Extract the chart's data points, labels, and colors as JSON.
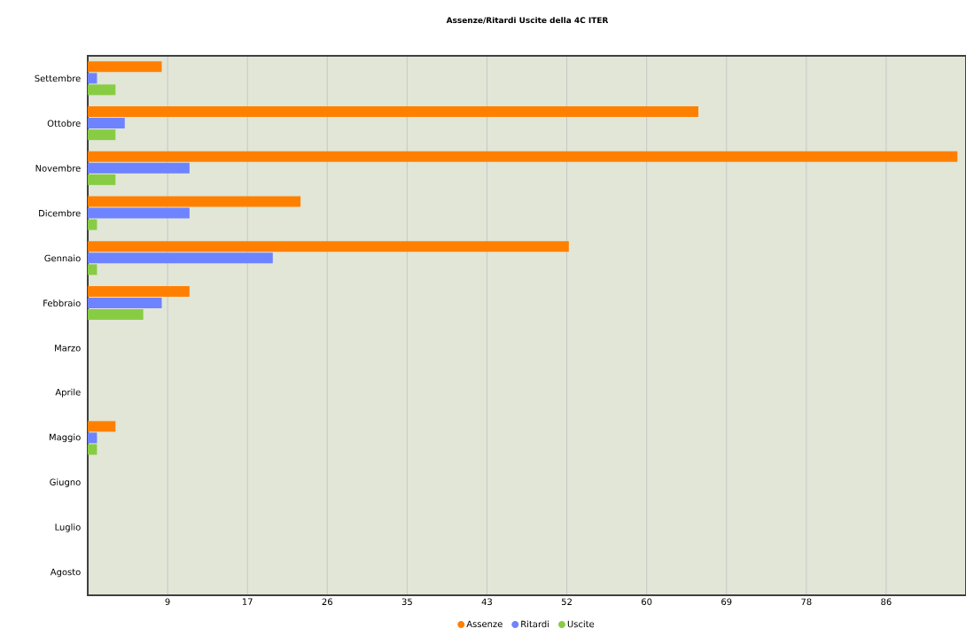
{
  "chart_data": {
    "type": "bar",
    "orientation": "horizontal",
    "title": "Assenze/Ritardi Uscite della 4C ITER",
    "categories": [
      "Settembre",
      "Ottobre",
      "Novembre",
      "Dicembre",
      "Gennaio",
      "Febbraio",
      "Marzo",
      "Aprile",
      "Maggio",
      "Giugno",
      "Luglio",
      "Agosto"
    ],
    "series": [
      {
        "name": "Assenze",
        "color": "#ff8000",
        "values": [
          8,
          66,
          94,
          23,
          52,
          11,
          null,
          null,
          3,
          null,
          null,
          null
        ]
      },
      {
        "name": "Ritardi",
        "color": "#6e83ff",
        "values": [
          1,
          4,
          11,
          11,
          20,
          8,
          null,
          null,
          1,
          null,
          null,
          null
        ]
      },
      {
        "name": "Uscite",
        "color": "#88cc44",
        "values": [
          3,
          3,
          3,
          1,
          1,
          6,
          null,
          null,
          1,
          null,
          null,
          null
        ]
      }
    ],
    "xlim": [
      0,
      94.93
    ],
    "xticks": [
      {
        "value": 8.63,
        "label": "9"
      },
      {
        "value": 17.26,
        "label": "17"
      },
      {
        "value": 25.89,
        "label": "26"
      },
      {
        "value": 34.52,
        "label": "35"
      },
      {
        "value": 43.15,
        "label": "43"
      },
      {
        "value": 51.78,
        "label": "52"
      },
      {
        "value": 60.41,
        "label": "60"
      },
      {
        "value": 69.04,
        "label": "69"
      },
      {
        "value": 77.67,
        "label": "78"
      },
      {
        "value": 86.3,
        "label": "86"
      }
    ],
    "grid": "x",
    "legend": "bottom"
  }
}
